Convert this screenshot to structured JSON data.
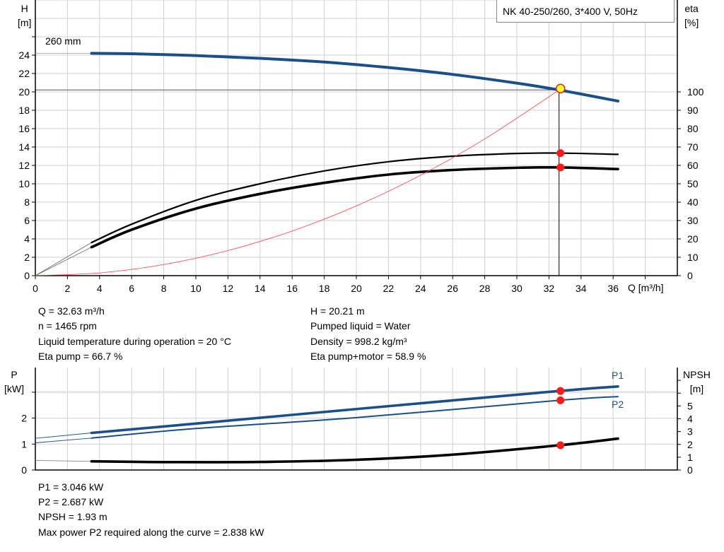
{
  "chart_data": [
    {
      "type": "line",
      "title": "NK 40-250/260, 3*400 V, 50Hz",
      "xlabel": "Q [m³/h]",
      "ylabel": "H\n[m]",
      "y2label": "eta\n[%]",
      "xlim": [
        0,
        40
      ],
      "ylim": [
        0,
        30
      ],
      "y2lim": [
        0,
        150
      ],
      "grid": true,
      "x_ticks": [
        0,
        2,
        4,
        6,
        8,
        10,
        12,
        14,
        16,
        18,
        20,
        22,
        24,
        26,
        28,
        30,
        32,
        34,
        36
      ],
      "y_ticks": [
        0,
        2,
        4,
        6,
        8,
        10,
        12,
        14,
        16,
        18,
        20,
        22,
        24
      ],
      "y2_ticks": [
        0,
        10,
        20,
        30,
        40,
        50,
        60,
        70,
        80,
        90,
        100
      ],
      "annotation": "260 mm",
      "series": [
        {
          "id": "head",
          "axis": "H",
          "color": "#1b4f8a",
          "points": [
            [
              3.5,
              24.2
            ],
            [
              6,
              24.15
            ],
            [
              10,
              23.95
            ],
            [
              14,
              23.65
            ],
            [
              18,
              23.25
            ],
            [
              22,
              22.65
            ],
            [
              26,
              21.9
            ],
            [
              30,
              20.95
            ],
            [
              32.63,
              20.21
            ],
            [
              36.3,
              19.0
            ]
          ],
          "extension": [
            [
              0,
              24.2
            ],
            [
              3.5,
              24.2
            ]
          ]
        },
        {
          "id": "eta-pump",
          "axis": "eta",
          "color": "#000000",
          "points": [
            [
              3.5,
              18
            ],
            [
              6,
              28
            ],
            [
              10,
              41
            ],
            [
              14,
              50
            ],
            [
              18,
              57
            ],
            [
              22,
              62
            ],
            [
              26,
              65
            ],
            [
              30,
              66.5
            ],
            [
              32.63,
              66.7
            ],
            [
              36.3,
              66
            ]
          ],
          "extension": [
            [
              0,
              0
            ],
            [
              3.5,
              18
            ]
          ]
        },
        {
          "id": "eta-pump-motor",
          "axis": "eta",
          "color": "#000000",
          "points": [
            [
              3.5,
              15.5
            ],
            [
              6,
              25
            ],
            [
              10,
              36.5
            ],
            [
              14,
              44.5
            ],
            [
              18,
              50.5
            ],
            [
              22,
              55
            ],
            [
              26,
              57.5
            ],
            [
              30,
              58.7
            ],
            [
              32.63,
              58.9
            ],
            [
              36.3,
              58
            ]
          ],
          "extension": [
            [
              0,
              0
            ],
            [
              3.5,
              15.5
            ]
          ]
        },
        {
          "id": "system-curve",
          "axis": "H",
          "color": "#ff4040",
          "points": [
            [
              0,
              0
            ],
            [
              4,
              0.3
            ],
            [
              8,
              1.21
            ],
            [
              12,
              2.73
            ],
            [
              16,
              4.86
            ],
            [
              20,
              7.59
            ],
            [
              24,
              10.93
            ],
            [
              28,
              14.88
            ],
            [
              32.63,
              20.21
            ]
          ]
        }
      ],
      "duty_point": {
        "Q": 32.63,
        "H": 20.21,
        "eta_pump": 66.7,
        "eta_pump_motor": 58.9
      }
    },
    {
      "type": "line",
      "ylabel": "P\n[kW]",
      "y2label": "NPSH\n[m]",
      "xlim": [
        0,
        40
      ],
      "ylim": [
        0,
        3.95
      ],
      "y2lim": [
        0,
        8
      ],
      "grid": true,
      "y_ticks": [
        0,
        1,
        2
      ],
      "y2_ticks": [
        0,
        1,
        2,
        3,
        4,
        5
      ],
      "series": [
        {
          "id": "P1",
          "name": "P1",
          "axis": "P",
          "color": "#1b4f8a",
          "points": [
            [
              3.5,
              1.43
            ],
            [
              10,
              1.79
            ],
            [
              20,
              2.35
            ],
            [
              32.63,
              3.046
            ],
            [
              36.3,
              3.22
            ]
          ],
          "extension": [
            [
              0,
              1.22
            ],
            [
              3.5,
              1.43
            ]
          ]
        },
        {
          "id": "P2",
          "name": "P2",
          "axis": "P",
          "color": "#1b4f8a",
          "points": [
            [
              3.5,
              1.23
            ],
            [
              10,
              1.6
            ],
            [
              20,
              2.02
            ],
            [
              32.63,
              2.687
            ],
            [
              36.3,
              2.83
            ]
          ],
          "extension": [
            [
              0,
              1.05
            ],
            [
              3.5,
              1.23
            ]
          ]
        },
        {
          "id": "NPSH",
          "axis": "NPSH",
          "color": "#000000",
          "points": [
            [
              3.5,
              0.68
            ],
            [
              8,
              0.62
            ],
            [
              14,
              0.63
            ],
            [
              20,
              0.8
            ],
            [
              26,
              1.2
            ],
            [
              32.63,
              1.93
            ],
            [
              36.3,
              2.45
            ]
          ],
          "extension": [
            [
              0,
              0.75
            ],
            [
              3.5,
              0.68
            ]
          ]
        }
      ],
      "duty_point": {
        "Q": 32.63,
        "P1": 3.046,
        "P2": 2.687,
        "NPSH": 1.93
      }
    }
  ],
  "info_top": {
    "left": [
      "Q = 32.63 m³/h",
      "n = 1465 rpm",
      "Liquid temperature during operation = 20 °C",
      "Eta pump = 66.7 %"
    ],
    "right": [
      "H = 20.21 m",
      "Pumped liquid = Water",
      "Density = 998.2 kg/m³",
      "Eta pump+motor = 58.9 %"
    ]
  },
  "info_bottom": [
    "P1 = 3.046 kW",
    "P2 = 2.687 kW",
    "NPSH = 1.93 m",
    "Max power P2 required along the curve = 2.838 kW"
  ]
}
